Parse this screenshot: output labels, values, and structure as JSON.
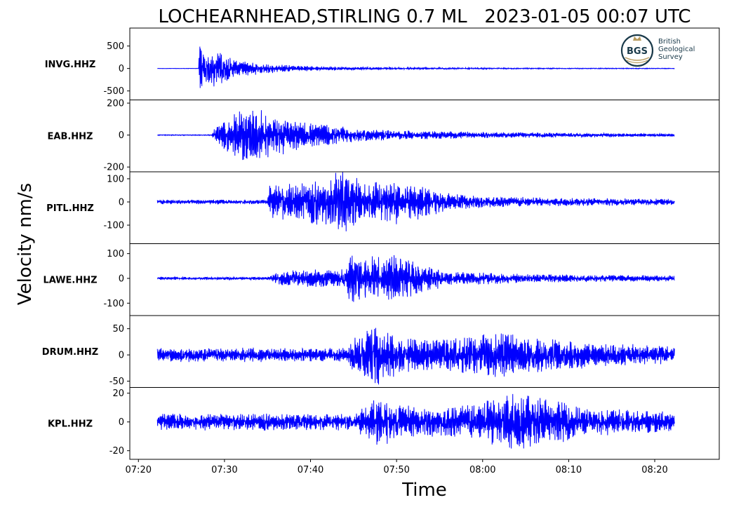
{
  "chart_data": {
    "type": "line",
    "title": "LOCHEARNHEAD,STIRLING 0.7 ML   2023-01-05 00:07 UTC",
    "xlabel": "Time",
    "ylabel": "Velocity nm/s",
    "grid": false,
    "x_ticks": [
      {
        "minute": 0,
        "label": "07:20"
      },
      {
        "minute": 10,
        "label": "07:30"
      },
      {
        "minute": 20,
        "label": "07:40"
      },
      {
        "minute": 30,
        "label": "07:50"
      },
      {
        "minute": 40,
        "label": "08:00"
      },
      {
        "minute": 50,
        "label": "08:10"
      },
      {
        "minute": 60,
        "label": "08:20"
      }
    ],
    "xlim_minutes": [
      -1.0,
      67.5
    ],
    "trace_range_minutes": [
      2.2,
      62.3
    ],
    "series_color": "#0000ff",
    "panels": [
      {
        "station": "INVG.HHZ",
        "ylim": [
          -700,
          900
        ],
        "yticks": [
          {
            "v": 500,
            "label": "500"
          },
          {
            "v": 0,
            "label": "0"
          },
          {
            "v": -500,
            "label": "-500"
          }
        ],
        "envelope": [
          {
            "t": 2.2,
            "a": 4
          },
          {
            "t": 7.0,
            "a": 4
          },
          {
            "t": 7.1,
            "a": 850
          },
          {
            "t": 7.4,
            "a": 500
          },
          {
            "t": 8.0,
            "a": 300
          },
          {
            "t": 9.3,
            "a": 550
          },
          {
            "t": 10.0,
            "a": 300
          },
          {
            "t": 12.0,
            "a": 180
          },
          {
            "t": 15.0,
            "a": 110
          },
          {
            "t": 20.0,
            "a": 60
          },
          {
            "t": 25.0,
            "a": 35
          },
          {
            "t": 30.0,
            "a": 25
          },
          {
            "t": 40.0,
            "a": 15
          },
          {
            "t": 50.0,
            "a": 10
          },
          {
            "t": 62.3,
            "a": 8
          }
        ],
        "logo": {
          "initials": "BGS",
          "lines": [
            "British",
            "Geological",
            "Survey"
          ]
        }
      },
      {
        "station": "EAB.HHZ",
        "ylim": [
          -230,
          220
        ],
        "yticks": [
          {
            "v": 200,
            "label": "200"
          },
          {
            "v": 0,
            "label": "0"
          },
          {
            "v": -200,
            "label": "-200"
          }
        ],
        "envelope": [
          {
            "t": 2.2,
            "a": 3
          },
          {
            "t": 8.5,
            "a": 3
          },
          {
            "t": 9.0,
            "a": 60
          },
          {
            "t": 11.0,
            "a": 140
          },
          {
            "t": 12.5,
            "a": 200
          },
          {
            "t": 15.0,
            "a": 150
          },
          {
            "t": 20.0,
            "a": 80
          },
          {
            "t": 25.0,
            "a": 45
          },
          {
            "t": 30.0,
            "a": 30
          },
          {
            "t": 40.0,
            "a": 20
          },
          {
            "t": 50.0,
            "a": 14
          },
          {
            "t": 62.3,
            "a": 10
          }
        ]
      },
      {
        "station": "PITL.HHZ",
        "ylim": [
          -180,
          130
        ],
        "yticks": [
          {
            "v": 100,
            "label": "100"
          },
          {
            "v": 0,
            "label": "0"
          },
          {
            "v": -100,
            "label": "-100"
          }
        ],
        "envelope": [
          {
            "t": 2.2,
            "a": 10
          },
          {
            "t": 15.0,
            "a": 10
          },
          {
            "t": 15.2,
            "a": 75
          },
          {
            "t": 18.0,
            "a": 80
          },
          {
            "t": 22.0,
            "a": 110
          },
          {
            "t": 24.0,
            "a": 150
          },
          {
            "t": 26.0,
            "a": 85
          },
          {
            "t": 30.0,
            "a": 100
          },
          {
            "t": 33.0,
            "a": 75
          },
          {
            "t": 36.0,
            "a": 40
          },
          {
            "t": 40.0,
            "a": 25
          },
          {
            "t": 50.0,
            "a": 18
          },
          {
            "t": 62.3,
            "a": 14
          }
        ]
      },
      {
        "station": "LAWE.HHZ",
        "ylim": [
          -150,
          140
        ],
        "yticks": [
          {
            "v": 100,
            "label": "100"
          },
          {
            "v": 0,
            "label": "0"
          },
          {
            "v": -100,
            "label": "-100"
          }
        ],
        "envelope": [
          {
            "t": 2.2,
            "a": 6
          },
          {
            "t": 15.0,
            "a": 6
          },
          {
            "t": 16.0,
            "a": 25
          },
          {
            "t": 20.0,
            "a": 40
          },
          {
            "t": 24.0,
            "a": 40
          },
          {
            "t": 24.8,
            "a": 130
          },
          {
            "t": 26.0,
            "a": 90
          },
          {
            "t": 28.0,
            "a": 90
          },
          {
            "t": 30.0,
            "a": 110
          },
          {
            "t": 33.0,
            "a": 60
          },
          {
            "t": 36.0,
            "a": 30
          },
          {
            "t": 45.0,
            "a": 18
          },
          {
            "t": 62.3,
            "a": 12
          }
        ]
      },
      {
        "station": "DRUM.HHZ",
        "ylim": [
          -62,
          75
        ],
        "yticks": [
          {
            "v": 50,
            "label": "50"
          },
          {
            "v": 0,
            "label": "0"
          },
          {
            "v": -50,
            "label": "-50"
          }
        ],
        "envelope": [
          {
            "t": 2.2,
            "a": 14
          },
          {
            "t": 24.0,
            "a": 14
          },
          {
            "t": 25.5,
            "a": 40
          },
          {
            "t": 27.5,
            "a": 60
          },
          {
            "t": 30.0,
            "a": 40
          },
          {
            "t": 35.0,
            "a": 30
          },
          {
            "t": 40.0,
            "a": 40
          },
          {
            "t": 43.0,
            "a": 45
          },
          {
            "t": 48.0,
            "a": 32
          },
          {
            "t": 55.0,
            "a": 22
          },
          {
            "t": 62.3,
            "a": 18
          }
        ]
      },
      {
        "station": "KPL.HHZ",
        "ylim": [
          -26,
          24
        ],
        "yticks": [
          {
            "v": 20,
            "label": "20"
          },
          {
            "v": 0,
            "label": "0"
          },
          {
            "v": -20,
            "label": "-20"
          }
        ],
        "envelope": [
          {
            "t": 2.2,
            "a": 6
          },
          {
            "t": 25.0,
            "a": 6
          },
          {
            "t": 26.5,
            "a": 12
          },
          {
            "t": 28.0,
            "a": 18
          },
          {
            "t": 30.0,
            "a": 12
          },
          {
            "t": 35.0,
            "a": 10
          },
          {
            "t": 40.0,
            "a": 14
          },
          {
            "t": 43.0,
            "a": 22
          },
          {
            "t": 47.0,
            "a": 18
          },
          {
            "t": 52.0,
            "a": 10
          },
          {
            "t": 62.3,
            "a": 7
          }
        ]
      }
    ]
  }
}
